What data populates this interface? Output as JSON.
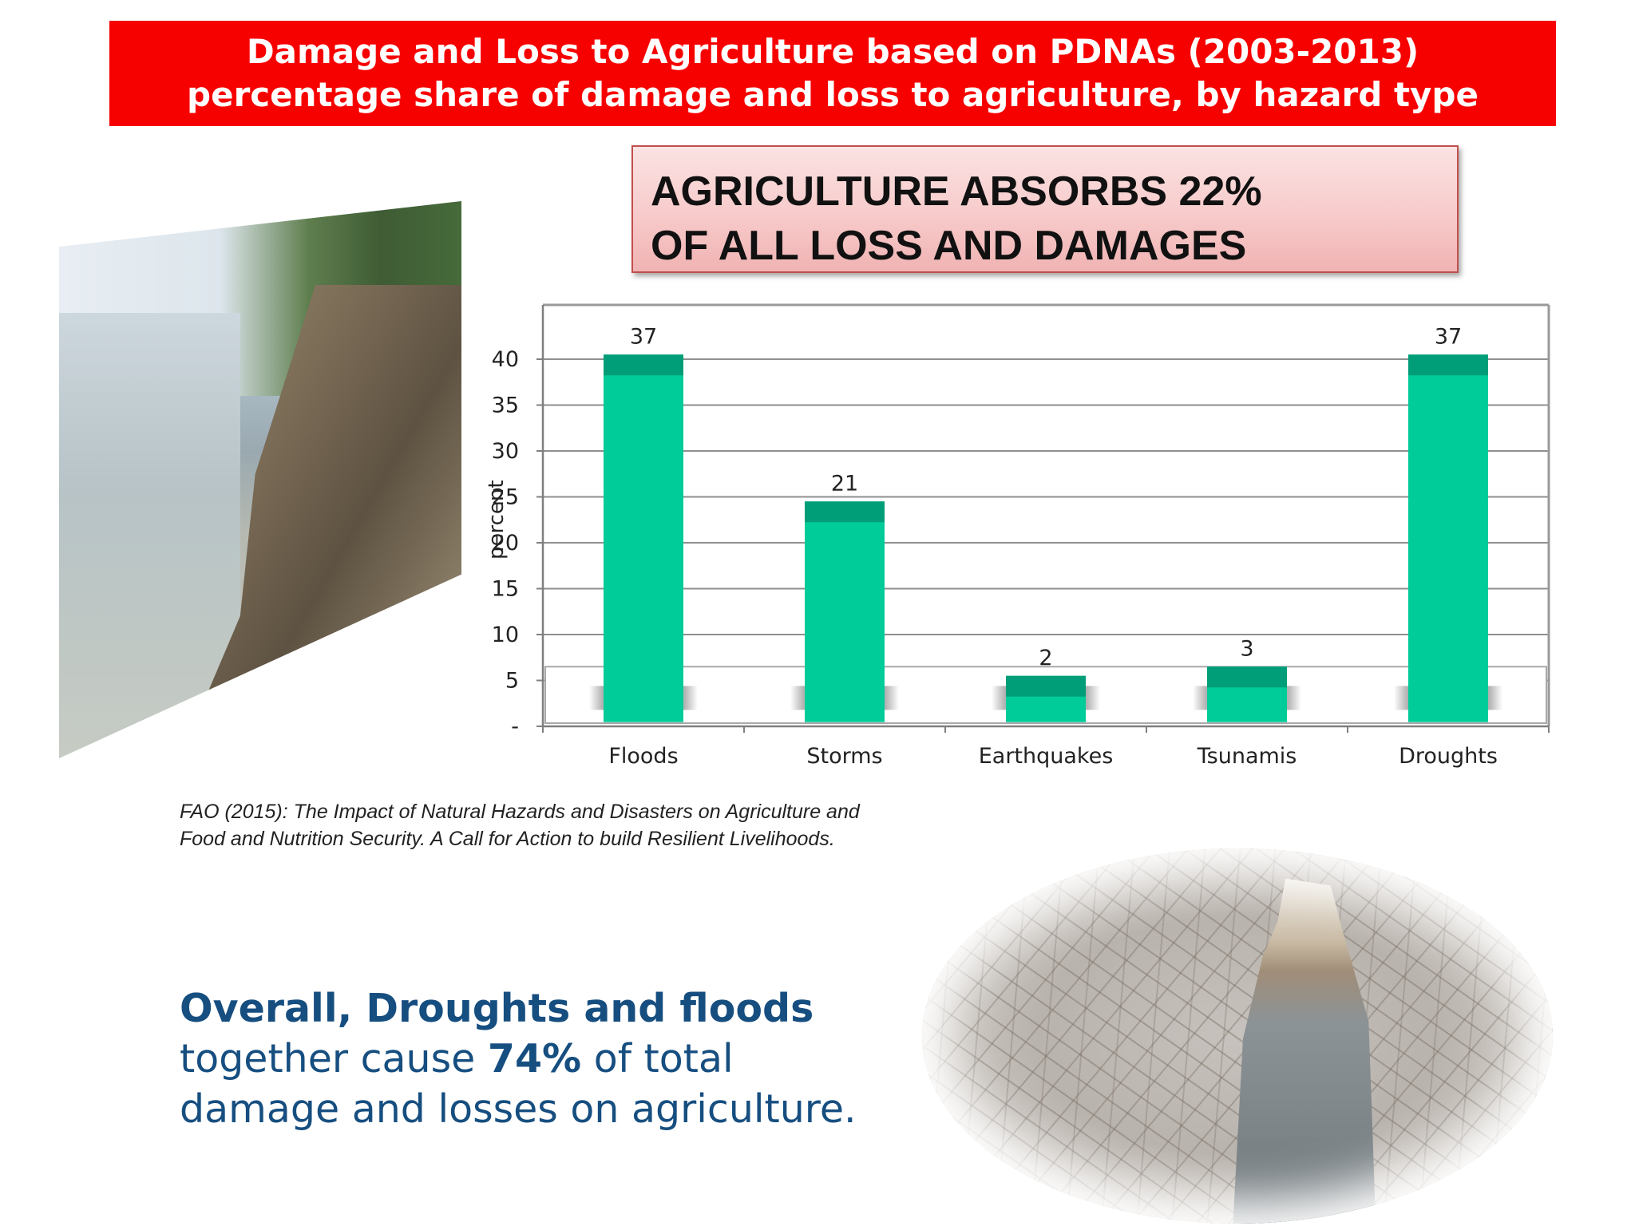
{
  "header": {
    "title_line1": "Damage and Loss to Agriculture based on PDNAs (2003-2013)",
    "title_line2": "percentage share of damage and loss to agriculture, by hazard type"
  },
  "callout": {
    "line1": "AGRICULTURE ABSORBS 22%",
    "line2": "OF ALL LOSS AND DAMAGES"
  },
  "chart_data": {
    "type": "bar",
    "categories": [
      "Floods",
      "Storms",
      "Earthquakes",
      "Tsunamis",
      "Droughts"
    ],
    "values": [
      37,
      21,
      2,
      3,
      37
    ],
    "data_labels": [
      "37",
      "21",
      "2",
      "3",
      "37"
    ],
    "ylabel": "percent",
    "yticks": [
      0,
      5,
      10,
      15,
      20,
      25,
      30,
      35,
      40
    ],
    "ytick_labels": [
      "-",
      "5",
      "10",
      "15",
      "20",
      "25",
      "30",
      "35",
      "40"
    ],
    "ylim": [
      0,
      40
    ],
    "grid": true,
    "legend": "none",
    "bar_color": "#00cc99",
    "bar_top_color": "#009e78"
  },
  "citation": {
    "line1": "FAO (2015): The Impact of Natural Hazards and Disasters on Agriculture and",
    "line2": "Food and Nutrition Security. A Call for Action to build Resilient Livelihoods."
  },
  "summary": {
    "bold_part": "Overall, Droughts and floods",
    "part2": "together cause ",
    "bold_percent": "74%",
    "part3": " of total",
    "line3": "damage and losses on agriculture."
  },
  "colors": {
    "banner": "#f70000",
    "summary_text": "#164e80"
  }
}
